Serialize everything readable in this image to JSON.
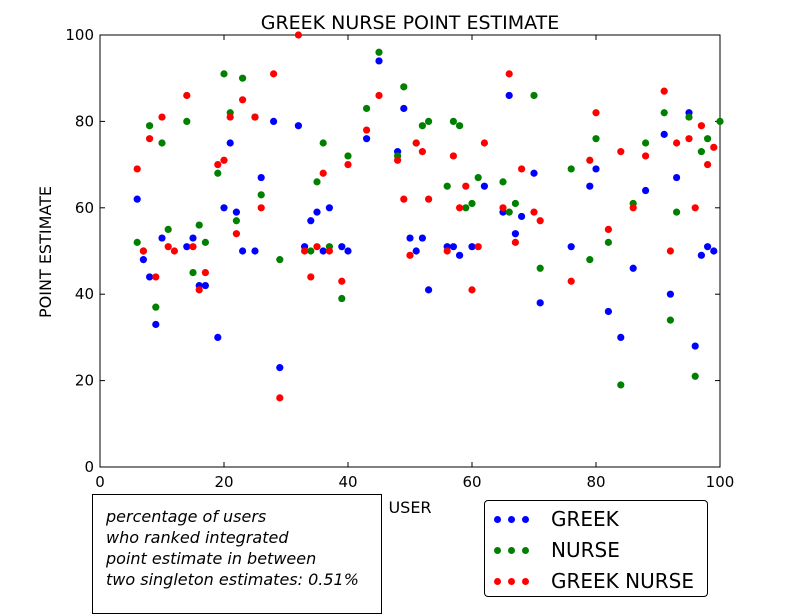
{
  "chart_data": {
    "type": "scatter",
    "title": "GREEK NURSE POINT ESTIMATE",
    "xlabel": "USER",
    "ylabel": "POINT ESTIMATE",
    "xlim": [
      0,
      100
    ],
    "ylim": [
      0,
      100
    ],
    "xticks": [
      0,
      20,
      40,
      60,
      80,
      100
    ],
    "yticks": [
      0,
      20,
      40,
      60,
      80,
      100
    ],
    "grid": false,
    "legend_position": "bottom-right outside plot",
    "series": [
      {
        "name": "GREEK",
        "color": "#0000ff",
        "points": [
          [
            6,
            62
          ],
          [
            7,
            48
          ],
          [
            8,
            44
          ],
          [
            9,
            33
          ],
          [
            10,
            53
          ],
          [
            14,
            51
          ],
          [
            15,
            53
          ],
          [
            16,
            42
          ],
          [
            17,
            42
          ],
          [
            19,
            30
          ],
          [
            20,
            60
          ],
          [
            21,
            75
          ],
          [
            22,
            59
          ],
          [
            23,
            50
          ],
          [
            25,
            50
          ],
          [
            26,
            67
          ],
          [
            28,
            80
          ],
          [
            29,
            23
          ],
          [
            32,
            79
          ],
          [
            33,
            51
          ],
          [
            34,
            57
          ],
          [
            35,
            59
          ],
          [
            36,
            50
          ],
          [
            37,
            60
          ],
          [
            39,
            51
          ],
          [
            40,
            50
          ],
          [
            43,
            76
          ],
          [
            45,
            94
          ],
          [
            48,
            73
          ],
          [
            49,
            83
          ],
          [
            50,
            53
          ],
          [
            51,
            50
          ],
          [
            52,
            53
          ],
          [
            53,
            41
          ],
          [
            56,
            51
          ],
          [
            57,
            51
          ],
          [
            58,
            49
          ],
          [
            60,
            51
          ],
          [
            62,
            65
          ],
          [
            65,
            59
          ],
          [
            66,
            86
          ],
          [
            67,
            54
          ],
          [
            68,
            58
          ],
          [
            70,
            68
          ],
          [
            71,
            38
          ],
          [
            76,
            51
          ],
          [
            79,
            65
          ],
          [
            80,
            69
          ],
          [
            82,
            36
          ],
          [
            84,
            30
          ],
          [
            86,
            46
          ],
          [
            88,
            64
          ],
          [
            91,
            77
          ],
          [
            92,
            40
          ],
          [
            93,
            67
          ],
          [
            95,
            82
          ],
          [
            96,
            28
          ],
          [
            97,
            49
          ],
          [
            98,
            51
          ],
          [
            99,
            50
          ]
        ]
      },
      {
        "name": "NURSE",
        "color": "#008000",
        "points": [
          [
            6,
            52
          ],
          [
            7,
            50
          ],
          [
            8,
            79
          ],
          [
            9,
            37
          ],
          [
            10,
            75
          ],
          [
            11,
            55
          ],
          [
            14,
            80
          ],
          [
            15,
            45
          ],
          [
            16,
            56
          ],
          [
            17,
            52
          ],
          [
            19,
            68
          ],
          [
            20,
            91
          ],
          [
            21,
            82
          ],
          [
            22,
            57
          ],
          [
            23,
            90
          ],
          [
            25,
            81
          ],
          [
            26,
            63
          ],
          [
            29,
            48
          ],
          [
            34,
            50
          ],
          [
            35,
            66
          ],
          [
            36,
            75
          ],
          [
            37,
            51
          ],
          [
            39,
            39
          ],
          [
            40,
            72
          ],
          [
            43,
            83
          ],
          [
            45,
            96
          ],
          [
            48,
            72
          ],
          [
            49,
            88
          ],
          [
            51,
            75
          ],
          [
            52,
            79
          ],
          [
            53,
            80
          ],
          [
            56,
            65
          ],
          [
            57,
            80
          ],
          [
            58,
            79
          ],
          [
            59,
            60
          ],
          [
            60,
            61
          ],
          [
            61,
            67
          ],
          [
            65,
            66
          ],
          [
            66,
            59
          ],
          [
            67,
            61
          ],
          [
            70,
            86
          ],
          [
            71,
            46
          ],
          [
            76,
            69
          ],
          [
            79,
            48
          ],
          [
            80,
            76
          ],
          [
            82,
            52
          ],
          [
            84,
            19
          ],
          [
            86,
            61
          ],
          [
            88,
            75
          ],
          [
            91,
            82
          ],
          [
            92,
            34
          ],
          [
            93,
            59
          ],
          [
            95,
            81
          ],
          [
            96,
            21
          ],
          [
            97,
            73
          ],
          [
            98,
            76
          ],
          [
            100,
            80
          ]
        ]
      },
      {
        "name": "GREEK NURSE",
        "color": "#ff0000",
        "points": [
          [
            6,
            69
          ],
          [
            7,
            50
          ],
          [
            8,
            76
          ],
          [
            9,
            44
          ],
          [
            10,
            81
          ],
          [
            11,
            51
          ],
          [
            12,
            50
          ],
          [
            14,
            86
          ],
          [
            15,
            51
          ],
          [
            16,
            41
          ],
          [
            17,
            45
          ],
          [
            19,
            70
          ],
          [
            20,
            71
          ],
          [
            21,
            81
          ],
          [
            22,
            54
          ],
          [
            23,
            85
          ],
          [
            25,
            81
          ],
          [
            26,
            60
          ],
          [
            28,
            91
          ],
          [
            29,
            16
          ],
          [
            32,
            100
          ],
          [
            33,
            50
          ],
          [
            34,
            44
          ],
          [
            35,
            51
          ],
          [
            36,
            68
          ],
          [
            37,
            50
          ],
          [
            39,
            43
          ],
          [
            40,
            70
          ],
          [
            43,
            78
          ],
          [
            45,
            86
          ],
          [
            48,
            71
          ],
          [
            49,
            62
          ],
          [
            50,
            49
          ],
          [
            51,
            75
          ],
          [
            52,
            73
          ],
          [
            53,
            62
          ],
          [
            56,
            50
          ],
          [
            57,
            72
          ],
          [
            58,
            60
          ],
          [
            59,
            65
          ],
          [
            60,
            41
          ],
          [
            61,
            51
          ],
          [
            62,
            75
          ],
          [
            65,
            60
          ],
          [
            66,
            91
          ],
          [
            67,
            52
          ],
          [
            68,
            69
          ],
          [
            70,
            59
          ],
          [
            71,
            57
          ],
          [
            76,
            43
          ],
          [
            79,
            71
          ],
          [
            80,
            82
          ],
          [
            82,
            55
          ],
          [
            84,
            73
          ],
          [
            86,
            60
          ],
          [
            88,
            72
          ],
          [
            91,
            87
          ],
          [
            92,
            50
          ],
          [
            93,
            75
          ],
          [
            95,
            76
          ],
          [
            96,
            60
          ],
          [
            97,
            79
          ],
          [
            98,
            70
          ],
          [
            99,
            74
          ]
        ]
      }
    ],
    "annotation": {
      "lines": [
        "percentage of users",
        "who ranked integrated",
        "point estimate in between",
        "two singleton estimates: 0.51%"
      ]
    }
  }
}
